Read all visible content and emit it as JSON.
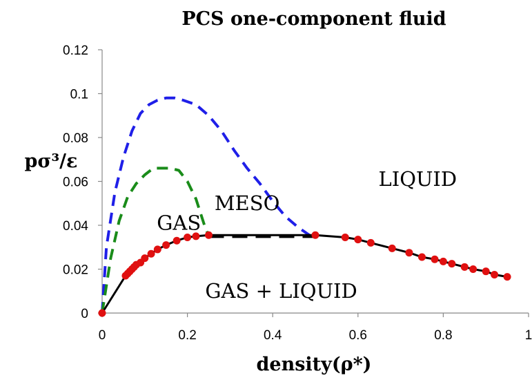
{
  "chart_data": {
    "type": "line",
    "title": "PCS one-component fluid",
    "xlabel": "density(ρ*)",
    "ylabel": "pσ³/ε",
    "xlim": [
      0,
      1
    ],
    "ylim": [
      0,
      0.12
    ],
    "xticks": [
      "0",
      "0.2",
      "0.4",
      "0.6",
      "0.8",
      "1"
    ],
    "yticks": [
      "0",
      "0.02",
      "0.04",
      "0.06",
      "0.08",
      "0.1",
      "0.12"
    ],
    "grid": false,
    "legend": "none",
    "annotations": [
      {
        "text": "LIQUID",
        "x": 0.74,
        "y": 0.058
      },
      {
        "text": "MESO",
        "x": 0.34,
        "y": 0.047
      },
      {
        "text": "GAS",
        "x": 0.18,
        "y": 0.038
      },
      {
        "text": "GAS  + LIQUID",
        "x": 0.42,
        "y": 0.007
      }
    ],
    "series": [
      {
        "style": "dashed",
        "color": "#1f1fe8",
        "x": [
          0.0,
          0.01,
          0.03,
          0.05,
          0.07,
          0.09,
          0.11,
          0.13,
          0.15,
          0.17,
          0.19,
          0.22,
          0.25,
          0.28,
          0.31,
          0.34,
          0.37,
          0.4,
          0.43,
          0.46,
          0.49
        ],
        "y": [
          0.0,
          0.03,
          0.055,
          0.071,
          0.083,
          0.091,
          0.095,
          0.097,
          0.098,
          0.098,
          0.097,
          0.095,
          0.09,
          0.083,
          0.074,
          0.066,
          0.059,
          0.051,
          0.044,
          0.039,
          0.035
        ]
      },
      {
        "style": "dashed",
        "color": "#1a8c1a",
        "x": [
          0.0,
          0.02,
          0.04,
          0.06,
          0.08,
          0.1,
          0.12,
          0.14,
          0.16,
          0.18,
          0.2,
          0.22,
          0.24,
          0.25
        ],
        "y": [
          0.0,
          0.025,
          0.042,
          0.053,
          0.059,
          0.063,
          0.066,
          0.066,
          0.066,
          0.065,
          0.06,
          0.052,
          0.04,
          0.035
        ]
      },
      {
        "style": "dashed",
        "color": "#000000",
        "x": [
          0.25,
          0.5
        ],
        "y": [
          0.035,
          0.035
        ]
      },
      {
        "style": "solid-markers",
        "color": "#000000",
        "marker_color": "#e01010",
        "x": [
          0.0,
          0.055,
          0.06,
          0.065,
          0.07,
          0.075,
          0.08,
          0.09,
          0.1,
          0.115,
          0.13,
          0.15,
          0.175,
          0.2,
          0.22,
          0.25,
          0.5,
          0.57,
          0.6,
          0.63,
          0.68,
          0.72,
          0.75,
          0.78,
          0.8,
          0.82,
          0.85,
          0.87,
          0.9,
          0.92,
          0.95
        ],
        "y": [
          0.0,
          0.017,
          0.018,
          0.019,
          0.02,
          0.021,
          0.022,
          0.023,
          0.025,
          0.027,
          0.029,
          0.031,
          0.033,
          0.0345,
          0.035,
          0.0355,
          0.0355,
          0.0345,
          0.0335,
          0.032,
          0.0295,
          0.0275,
          0.0255,
          0.0245,
          0.0235,
          0.0225,
          0.021,
          0.02,
          0.019,
          0.0175,
          0.0165
        ]
      }
    ]
  }
}
